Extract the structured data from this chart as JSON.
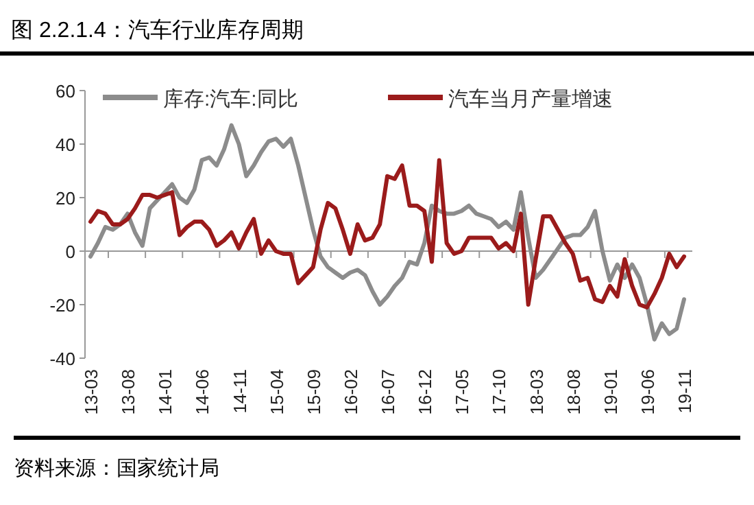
{
  "chart_data": {
    "type": "line",
    "title": "图 2.2.1.4：汽车行业库存周期",
    "annotations": [
      "资料来源：国家统计局"
    ],
    "categories": [
      "13-03",
      null,
      null,
      null,
      null,
      "13-08",
      null,
      null,
      null,
      null,
      "14-01",
      null,
      null,
      null,
      null,
      "14-06",
      null,
      null,
      null,
      null,
      "14-11",
      null,
      null,
      null,
      null,
      "15-04",
      null,
      null,
      null,
      null,
      "15-09",
      null,
      null,
      null,
      null,
      "16-02",
      null,
      null,
      null,
      null,
      "16-07",
      null,
      null,
      null,
      null,
      "16-12",
      null,
      null,
      null,
      null,
      "17-05",
      null,
      null,
      null,
      null,
      "17-10",
      null,
      null,
      null,
      null,
      "18-03",
      null,
      null,
      null,
      null,
      "18-08",
      null,
      null,
      null,
      null,
      "19-01",
      null,
      null,
      null,
      null,
      "19-06",
      null,
      null,
      null,
      null,
      "19-11"
    ],
    "series": [
      {
        "name": "库存:汽车:同比",
        "color": "#8c8c8c",
        "values": [
          -2,
          3,
          9,
          8,
          10,
          14,
          7,
          2,
          16,
          19,
          22,
          25,
          20,
          18,
          23,
          34,
          35,
          32,
          38,
          47,
          40,
          28,
          32,
          37,
          41,
          42,
          39,
          42,
          32,
          20,
          8,
          -2,
          -6,
          -8,
          -10,
          -8,
          -7,
          -9,
          -15,
          -20,
          -17,
          -13,
          -10,
          -4,
          -5,
          3,
          17,
          15,
          14,
          14,
          15,
          17,
          14,
          13,
          12,
          9,
          11,
          8,
          22,
          5,
          -10,
          -7,
          -3,
          1,
          5,
          6,
          6,
          9,
          15,
          0,
          -11,
          -5,
          -10,
          -5,
          -10,
          -20,
          -33,
          -27,
          -31,
          -29,
          -18
        ]
      },
      {
        "name": "汽车当月产量增速",
        "color": "#9b1b1b",
        "values": [
          11,
          15,
          14,
          10,
          10,
          12,
          16,
          21,
          21,
          20,
          21,
          22,
          6,
          9,
          11,
          11,
          8,
          2,
          4,
          7,
          1,
          7,
          12,
          -1,
          4,
          0,
          -1,
          -1,
          -12,
          -9,
          -6,
          8,
          18,
          16,
          8,
          -1,
          10,
          4,
          5,
          10,
          28,
          27,
          32,
          17,
          17,
          15,
          -4,
          34,
          3,
          -1,
          0,
          5,
          5,
          5,
          5,
          1,
          3,
          0,
          14,
          -20,
          -3,
          13,
          13,
          8,
          3,
          -1,
          -11,
          -10,
          -18,
          -19,
          -13,
          -17,
          -3,
          -13,
          -20,
          -21,
          -16,
          -10,
          -1,
          -6,
          -2
        ]
      }
    ],
    "ylim": [
      -40,
      60
    ],
    "yticks": [
      -40,
      -20,
      0,
      20,
      40,
      60
    ],
    "legend": "top",
    "grid": false,
    "ref_lines": [
      {
        "axis": "y",
        "value": 0
      }
    ]
  }
}
